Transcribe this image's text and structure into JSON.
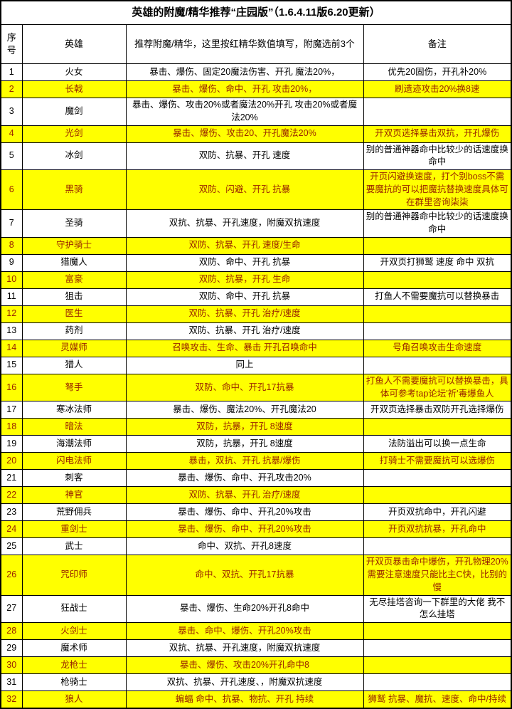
{
  "title": "英雄的附魔/精华推荐“庄园版”（1.6.4.11版6.20更新）",
  "colors": {
    "highlight": "#ffff00",
    "highlight_text": "#992400",
    "text": "#000000",
    "border": "#000000",
    "background": "#ffffff"
  },
  "table": {
    "columns": [
      "序号",
      "英雄",
      "推荐附魔/精华，这里按红精华数值填写，附魔选前3个",
      "备注"
    ],
    "rows": [
      {
        "no": "1",
        "hero": "火女",
        "essence": "暴击、爆伤、固定20魔法伤害、开孔 魔法20%，",
        "note": "优先20固伤，开孔补20%",
        "highlight": false
      },
      {
        "no": "2",
        "hero": "长戟",
        "essence": "暴击、爆伤、命中、开孔 攻击20%，",
        "note": "刷遗迹攻击20%换8速",
        "highlight": true
      },
      {
        "no": "3",
        "hero": "魔剑",
        "essence": "暴击、爆伤、攻击20%或者魔法20%开孔 攻击20%或者魔法20%",
        "note": "",
        "highlight": false
      },
      {
        "no": "4",
        "hero": "光剑",
        "essence": "暴击、爆伤、攻击20、开孔魔法20%",
        "note": "开双页选择暴击双抗，开孔爆伤",
        "highlight": true
      },
      {
        "no": "5",
        "hero": "冰剑",
        "essence": "双防、抗暴、开孔 速度",
        "note": "别的普通神器命中比较少的话速度换命中",
        "highlight": false
      },
      {
        "no": "6",
        "hero": "黑骑",
        "essence": "双防、闪避、开孔 抗暴",
        "note": "开页闪避换速度，打个别boss不需要魔抗的可以把魔抗替换速度具体可在群里咨询柒柒",
        "highlight": true
      },
      {
        "no": "7",
        "hero": "圣骑",
        "essence": "双抗、抗暴、开孔速度，附魔双抗速度",
        "note": "别的普通神器命中比较少的话速度换命中",
        "highlight": false
      },
      {
        "no": "8",
        "hero": "守护骑士",
        "essence": "双防、抗暴、开孔 速度/生命",
        "note": "",
        "highlight": true
      },
      {
        "no": "9",
        "hero": "猎魔人",
        "essence": "双防、命中、开孔 抗暴",
        "note": "开双页打狮鹫 速度 命中 双抗",
        "highlight": false
      },
      {
        "no": "10",
        "hero": "富豪",
        "essence": "双防、抗暴，开孔 生命",
        "note": "",
        "highlight": true
      },
      {
        "no": "11",
        "hero": "狙击",
        "essence": "双防、命中、开孔 抗暴",
        "note": "打鱼人不需要魔抗可以替换暴击",
        "highlight": false
      },
      {
        "no": "12",
        "hero": "医生",
        "essence": "双防、抗暴、开孔 治疗/速度",
        "note": "",
        "highlight": true
      },
      {
        "no": "13",
        "hero": "药剂",
        "essence": "双防、抗暴、开孔 治疗/速度",
        "note": "",
        "highlight": false
      },
      {
        "no": "14",
        "hero": "灵媒师",
        "essence": "召唤攻击、生命、暴击 开孔召唤命中",
        "note": "号角召唤攻击生命速度",
        "highlight": true
      },
      {
        "no": "15",
        "hero": "猎人",
        "essence": "同上",
        "note": "",
        "highlight": false
      },
      {
        "no": "16",
        "hero": "弩手",
        "essence": "双防、命中、开孔17抗暴",
        "note": "打鱼人不需要魔抗可以替换暴击，具体可参考tap论坛'祈'毒爆鱼人",
        "highlight": true
      },
      {
        "no": "17",
        "hero": "寒冰法师",
        "essence": "暴击、爆伤、魔法20%、开孔魔法20",
        "note": "开双页选择暴击双防开孔选择爆伤",
        "highlight": false
      },
      {
        "no": "18",
        "hero": "暗法",
        "essence": "双防，抗暴，开孔 8速度",
        "note": "",
        "highlight": true
      },
      {
        "no": "19",
        "hero": "海潮法师",
        "essence": "双防，抗暴，开孔 8速度",
        "note": "法防溢出可以换一点生命",
        "highlight": false
      },
      {
        "no": "20",
        "hero": "闪电法师",
        "essence": "暴击，双抗、开孔 抗暴/爆伤",
        "note": "打骑士不需要魔抗可以选爆伤",
        "highlight": true
      },
      {
        "no": "21",
        "hero": "刺客",
        "essence": "暴击、爆伤、命中、开孔攻击20%",
        "note": "",
        "highlight": false
      },
      {
        "no": "22",
        "hero": "神官",
        "essence": "双防、抗暴、开孔 治疗/速度",
        "note": "",
        "highlight": true
      },
      {
        "no": "23",
        "hero": "荒野佣兵",
        "essence": "暴击、爆伤、命中、开孔20%攻击",
        "note": "开页双抗命中，开孔闪避",
        "highlight": false
      },
      {
        "no": "24",
        "hero": "重剑士",
        "essence": "暴击、爆伤、命中、开孔20%攻击",
        "note": "开页双抗抗暴，开孔命中",
        "highlight": true
      },
      {
        "no": "25",
        "hero": "武士",
        "essence": "命中、双抗、开孔8速度",
        "note": "",
        "highlight": false
      },
      {
        "no": "26",
        "hero": "咒印师",
        "essence": "命中、双抗、开孔17抗暴",
        "note": "开双页暴击命中爆伤，开孔物理20%需要注意速度只能比主C快，比别的慢",
        "highlight": true
      },
      {
        "no": "27",
        "hero": "狂战士",
        "essence": "暴击、爆伤、生命20%开孔8命中",
        "note": "无尽挂塔咨询一下群里的大佬 我不怎么挂塔",
        "highlight": false
      },
      {
        "no": "28",
        "hero": "火剑士",
        "essence": "暴击、命中、爆伤、开孔20%攻击",
        "note": "",
        "highlight": true
      },
      {
        "no": "29",
        "hero": "魔术师",
        "essence": "双抗、抗暴、开孔速度，附魔双抗速度",
        "note": "",
        "highlight": false
      },
      {
        "no": "30",
        "hero": "龙枪士",
        "essence": "暴击、爆伤、攻击20%开孔命中8",
        "note": "",
        "highlight": true
      },
      {
        "no": "31",
        "hero": "枪骑士",
        "essence": "双抗、抗暴、开孔速度、，附魔双抗速度",
        "note": "",
        "highlight": false
      },
      {
        "no": "32",
        "hero": "狼人",
        "essence": "蝙蝠 命中、抗暴、物抗、开孔 持续",
        "note": "狮鹫 抗暴、魔抗、速度、命中/持续",
        "highlight": true
      }
    ]
  }
}
